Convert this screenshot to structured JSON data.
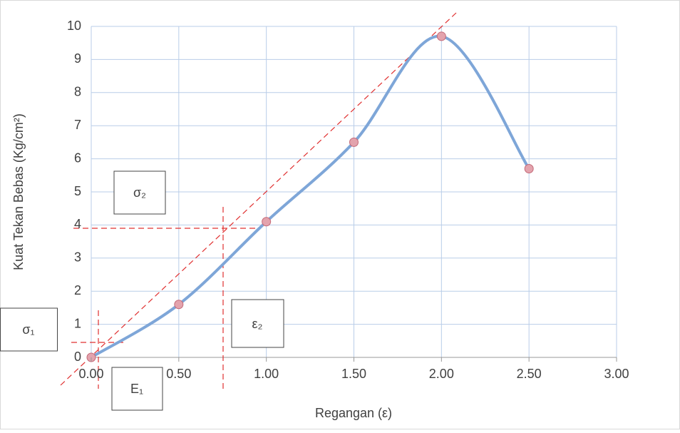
{
  "chart_data": {
    "type": "line",
    "x_label": "Regangan (ε)",
    "y_label": "Kuat Tekan Bebas (Kg/cm²)",
    "x": [
      0,
      0.5,
      1,
      1.5,
      2,
      2.5
    ],
    "series": [
      {
        "color": "#7ea6d8",
        "marker_color": "#e3a3ad",
        "values": [
          0,
          1.6,
          4.1,
          6.5,
          9.7,
          5.7
        ]
      }
    ],
    "xlim": [
      0,
      3
    ],
    "ylim": [
      0,
      10
    ],
    "xticks": [
      {
        "value": 0,
        "label": "0.00"
      },
      {
        "value": 0.5,
        "label": "0.50"
      },
      {
        "value": 1,
        "label": "1.00"
      },
      {
        "value": 1.5,
        "label": "1.50"
      },
      {
        "value": 2,
        "label": "2.00"
      },
      {
        "value": 2.5,
        "label": "2.50"
      },
      {
        "value": 3,
        "label": "3.00"
      }
    ],
    "yticks": [
      0,
      1,
      2,
      3,
      4,
      5,
      6,
      7,
      8,
      9,
      10
    ],
    "grid": true,
    "annotations": [
      "σ₂",
      "σ₁",
      "ε₂",
      "E₁"
    ]
  }
}
